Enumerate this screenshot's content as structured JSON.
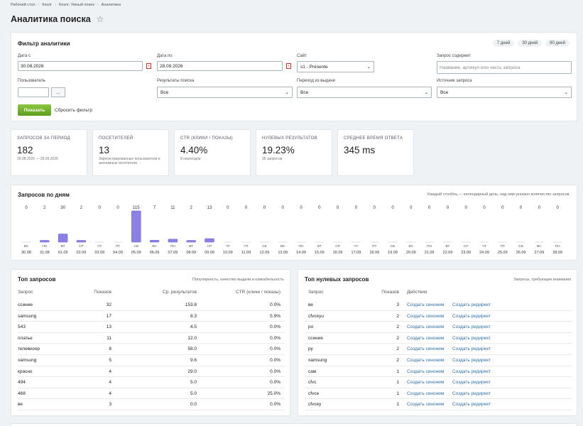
{
  "breadcrumb": [
    "Рабочий стол",
    "Кезлг",
    "Кезлг: Умный поиск",
    "Аналитика"
  ],
  "page": {
    "title": "Аналитика поиска"
  },
  "filter": {
    "title": "Фильтр аналитики",
    "periods": [
      "7 дней",
      "30 дней",
      "90 дней"
    ],
    "date_from_label": "Дата с",
    "date_from": "30.08.2026",
    "date_to_label": "Дата по",
    "date_to": "28.09.2026",
    "site_label": "Сайт",
    "site": "s1 - Présente",
    "query_label": "Запрос содержит",
    "query_placeholder": "Название, артикул или часть запроса",
    "user_label": "Пользователь",
    "user_button": "...",
    "results_label": "Результаты поиска",
    "results": "Все",
    "transition_label": "Переход из выдачи",
    "transition": "Все",
    "source_label": "Источник запроса",
    "source": "Все",
    "submit": "Показать",
    "reset": "Сбросить фильтр"
  },
  "stats": [
    {
      "label": "ЗАПРОСОВ ЗА ПЕРИОД",
      "value": "182",
      "sub": "30.08.2026 — 28.09.2026"
    },
    {
      "label": "ПОСЕТИТЕЛЕЙ",
      "value": "13",
      "sub": "Зарегистрированные пользователи и анонимные посетители"
    },
    {
      "label": "CTR (КЛИКИ / ПОКАЗЫ)",
      "value": "4.40%",
      "sub": "8 переходов"
    },
    {
      "label": "НУЛЕВЫХ РЕЗУЛЬТАТОВ",
      "value": "19.23%",
      "sub": "35 запросов"
    },
    {
      "label": "СРЕДНЕЕ ВРЕМЯ ОТВЕТА",
      "value": "345 ms",
      "sub": ""
    }
  ],
  "chart_data": {
    "type": "bar",
    "title": "Запросов по дням",
    "hint": "Каждый столбец — календарный день; над ним указано количество запросов.",
    "colors": {
      "bar": "#8b80e6",
      "bar_edge": "#6e62d6"
    },
    "days": [
      {
        "dow": "ВС",
        "date": "30.08",
        "value": 0
      },
      {
        "dow": "ПН",
        "date": "31.08",
        "value": 2
      },
      {
        "dow": "ВТ",
        "date": "01.09",
        "value": 30
      },
      {
        "dow": "СР",
        "date": "02.09",
        "value": 2
      },
      {
        "dow": "ЧТ",
        "date": "03.09",
        "value": 0
      },
      {
        "dow": "ПТ",
        "date": "04.09",
        "value": 0
      },
      {
        "dow": "СБ",
        "date": "05.09",
        "value": 115
      },
      {
        "dow": "ВС",
        "date": "06.09",
        "value": 7
      },
      {
        "dow": "ПН",
        "date": "07.09",
        "value": 11
      },
      {
        "dow": "ВТ",
        "date": "08.09",
        "value": 2
      },
      {
        "dow": "СР",
        "date": "09.09",
        "value": 13
      },
      {
        "dow": "ЧТ",
        "date": "10.09",
        "value": 0
      },
      {
        "dow": "ПТ",
        "date": "11.09",
        "value": 0
      },
      {
        "dow": "СБ",
        "date": "12.09",
        "value": 0
      },
      {
        "dow": "ВС",
        "date": "13.09",
        "value": 0
      },
      {
        "dow": "ПН",
        "date": "14.09",
        "value": 0
      },
      {
        "dow": "ВТ",
        "date": "15.09",
        "value": 0
      },
      {
        "dow": "СР",
        "date": "16.09",
        "value": 0
      },
      {
        "dow": "ЧТ",
        "date": "17.09",
        "value": 0
      },
      {
        "dow": "ПТ",
        "date": "18.09",
        "value": 0
      },
      {
        "dow": "СБ",
        "date": "19.09",
        "value": 0
      },
      {
        "dow": "ВС",
        "date": "20.09",
        "value": 0
      },
      {
        "dow": "ПН",
        "date": "21.09",
        "value": 0
      },
      {
        "dow": "ВТ",
        "date": "22.09",
        "value": 0
      },
      {
        "dow": "СР",
        "date": "23.09",
        "value": 0
      },
      {
        "dow": "ЧТ",
        "date": "24.09",
        "value": 0
      },
      {
        "dow": "ПТ",
        "date": "25.09",
        "value": 0
      },
      {
        "dow": "СБ",
        "date": "26.09",
        "value": 0
      },
      {
        "dow": "ВС",
        "date": "27.09",
        "value": 0
      },
      {
        "dow": "ПН",
        "date": "28.09",
        "value": 0
      }
    ]
  },
  "top": {
    "title": "Топ запросов",
    "hint": "Популярность, качество выдачи и кликабельность",
    "headers": [
      "Запрос",
      "Показов",
      "Ср. результатов",
      "CTR (клики / показы)"
    ],
    "rows": [
      [
        "ссиние",
        "32",
        "153.8",
        "0.0%"
      ],
      [
        "samsung",
        "17",
        "8.3",
        "5.9%"
      ],
      [
        "543",
        "13",
        "4.5",
        "0.0%"
      ],
      [
        "платье",
        "11",
        "12.0",
        "0.0%"
      ],
      [
        "телевизор",
        "8",
        "58.0",
        "0.0%"
      ],
      [
        "xamsung",
        "5",
        "9.6",
        "0.0%"
      ],
      [
        "красно",
        "4",
        "29.0",
        "0.0%"
      ],
      [
        "494",
        "4",
        "5.0",
        "0.0%"
      ],
      [
        "468",
        "4",
        "5.0",
        "25.0%"
      ],
      [
        "ве",
        "3",
        "0.0",
        "0.0%"
      ]
    ]
  },
  "zero": {
    "title": "Топ нулевых запросов",
    "hint": "Запросы, требующие внимания",
    "headers": [
      "Запрос",
      "Показов",
      "Действия"
    ],
    "action_synonym": "Создать синоним",
    "action_redirect": "Создать редирект",
    "rows": [
      [
        "ве",
        "3"
      ],
      [
        "cfvceyu",
        "2"
      ],
      [
        "ро",
        "2"
      ],
      [
        "ссиние",
        "2"
      ],
      [
        "ру",
        "2"
      ],
      [
        "xamsung",
        "2"
      ],
      [
        "сам",
        "1"
      ],
      [
        "cfvc",
        "1"
      ],
      [
        "cfvce",
        "1"
      ],
      [
        "cfvcey",
        "1"
      ]
    ]
  }
}
